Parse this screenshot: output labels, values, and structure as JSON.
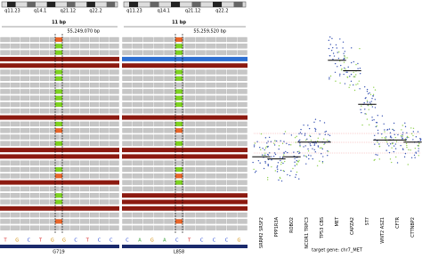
{
  "igv": {
    "panels": [
      {
        "bands": [
          "q11.23",
          "q14.1",
          "q21.12",
          "q22.2"
        ],
        "scale": "11 bp",
        "position": "55,249,070 bp",
        "sequence": [
          "T",
          "G",
          "C",
          "T",
          "G",
          "G",
          "C",
          "T",
          "C",
          "C"
        ],
        "mutation": "G719"
      },
      {
        "bands": [
          "q11.23",
          "q14.1",
          "q21.12",
          "q22.2"
        ],
        "scale": "11 bp",
        "position": "55,259,520 bp",
        "sequence": [
          "C",
          "A",
          "G",
          "A",
          "C",
          "T",
          "C",
          "C",
          "C",
          "G"
        ],
        "mutation": "L858"
      }
    ]
  },
  "chart_data": {
    "type": "strip",
    "categories": [
      "SRRM2 SRSF2",
      "PPP1R3A",
      "ROBO2",
      "NCOR1 TRPC3",
      "TP53 CBS",
      "MET",
      "CAPZA2",
      "ST7",
      "WNT2 ASZ1",
      "CFTR",
      "CTTNBP2"
    ],
    "values": [
      27,
      26,
      27,
      34,
      34,
      73,
      68,
      52,
      35,
      35,
      34
    ],
    "ylim": [
      0,
      100
    ],
    "xlabel": "target gene: chr7_MET",
    "colors": [
      "#3a55b4",
      "#8fd14f"
    ]
  }
}
